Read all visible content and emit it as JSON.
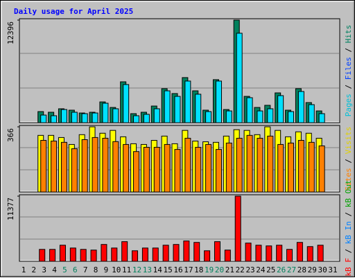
{
  "chart_data": [
    {
      "type": "bar",
      "title": "Daily usage for April 2025",
      "ylim": [
        0,
        12396
      ],
      "yticks": [
        12396
      ],
      "right_label": [
        {
          "text": "Pages",
          "color": "#00c0d8"
        },
        {
          "text": " / ",
          "color": "#000000"
        },
        {
          "text": "Files",
          "color": "#0040ff"
        },
        {
          "text": " / ",
          "color": "#000000"
        },
        {
          "text": "Hits",
          "color": "#008060"
        }
      ],
      "series": [
        {
          "name": "Hits",
          "color": "#00805c",
          "values": [
            null,
            null,
            1340,
            1260,
            1680,
            1510,
            1170,
            1260,
            2510,
            1840,
            4940,
            1090,
            1260,
            2010,
            4110,
            3520,
            5450,
            3850,
            1510,
            5200,
            1590,
            12396,
            3180,
            1840,
            2100,
            3600,
            1510,
            4110,
            2430,
            1420,
            null
          ]
        },
        {
          "name": "Pages",
          "color": "#00e0ff",
          "values": [
            null,
            null,
            920,
            840,
            1590,
            1260,
            1090,
            1170,
            2350,
            1680,
            4610,
            840,
            1010,
            1680,
            3850,
            3180,
            5030,
            3440,
            1340,
            5030,
            1420,
            10810,
            3020,
            1420,
            1680,
            3270,
            1340,
            3770,
            2180,
            1090,
            null
          ]
        }
      ]
    },
    {
      "type": "bar",
      "ylim": [
        0,
        366
      ],
      "yticks": [
        366
      ],
      "right_label": [
        {
          "text": "Sites",
          "color": "#ff8000"
        },
        {
          "text": " / ",
          "color": "#000000"
        },
        {
          "text": "Visits",
          "color": "#e0d000"
        }
      ],
      "series": [
        {
          "name": "Visits",
          "color": "#ffff00",
          "values": [
            null,
            null,
            318,
            318,
            306,
            267,
            322,
            366,
            330,
            346,
            310,
            271,
            267,
            290,
            314,
            271,
            346,
            286,
            282,
            279,
            314,
            350,
            346,
            322,
            366,
            346,
            310,
            338,
            330,
            302,
            null
          ]
        },
        {
          "name": "Sites",
          "color": "#ff8000",
          "values": [
            null,
            null,
            290,
            286,
            279,
            243,
            294,
            306,
            302,
            283,
            267,
            227,
            251,
            251,
            267,
            239,
            302,
            251,
            267,
            239,
            275,
            302,
            318,
            302,
            314,
            267,
            275,
            290,
            279,
            259,
            null
          ]
        }
      ]
    },
    {
      "type": "bar",
      "ylim": [
        0,
        11377
      ],
      "yticks": [
        11377
      ],
      "right_label": [
        {
          "text": "kB F",
          "color": "#ff0000"
        },
        {
          "text": " / ",
          "color": "#000000"
        },
        {
          "text": "kB In",
          "color": "#0080ff"
        },
        {
          "text": " / ",
          "color": "#000000"
        },
        {
          "text": "kB Out",
          "color": "#00a000"
        }
      ],
      "categories": [
        "1",
        "2",
        "3",
        "4",
        "5",
        "6",
        "7",
        "8",
        "9",
        "10",
        "11",
        "12",
        "13",
        "14",
        "15",
        "16",
        "17",
        "18",
        "19",
        "20",
        "21",
        "22",
        "23",
        "24",
        "25",
        "26",
        "27",
        "28",
        "29",
        "30",
        "31"
      ],
      "category_colors": [
        "#000000",
        "#000000",
        "#000000",
        "#000000",
        "#00805c",
        "#00805c",
        "#000000",
        "#000000",
        "#000000",
        "#000000",
        "#000000",
        "#00805c",
        "#00805c",
        "#000000",
        "#000000",
        "#000000",
        "#000000",
        "#000000",
        "#00805c",
        "#00805c",
        "#000000",
        "#000000",
        "#000000",
        "#000000",
        "#000000",
        "#00805c",
        "#00805c",
        "#000000",
        "#000000",
        "#000000",
        "#000000"
      ],
      "series": [
        {
          "name": "kB F",
          "color": "#ff0000",
          "values": [
            null,
            null,
            2080,
            2080,
            2810,
            2320,
            2080,
            1960,
            2940,
            2320,
            3430,
            1840,
            2320,
            2320,
            2810,
            2940,
            3550,
            3300,
            1840,
            3430,
            1960,
            11377,
            3180,
            2810,
            2690,
            2810,
            2080,
            3300,
            2570,
            2810,
            null
          ]
        }
      ]
    }
  ]
}
